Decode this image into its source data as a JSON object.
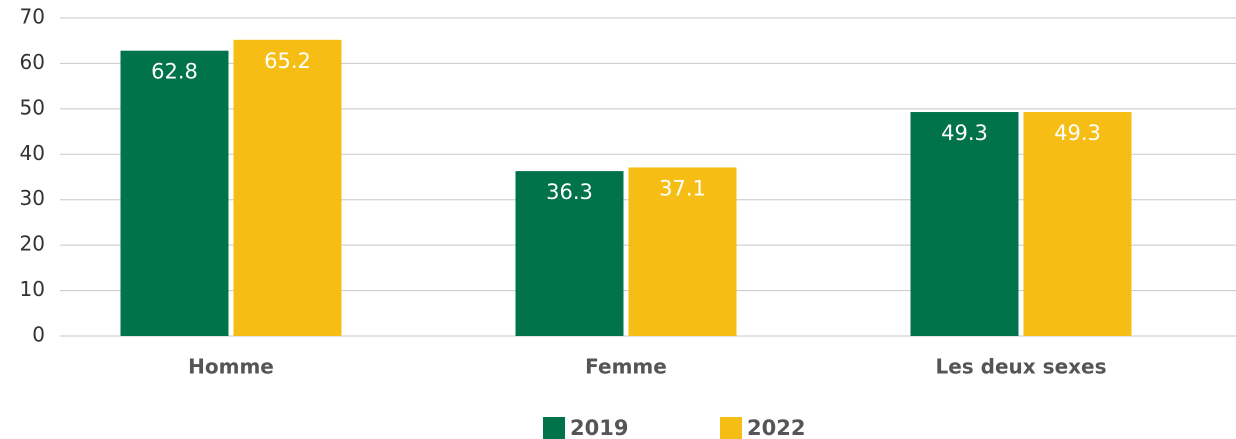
{
  "chart_data": {
    "type": "bar",
    "categories": [
      "Homme",
      "Femme",
      "Les deux sexes"
    ],
    "series": [
      {
        "name": "2019",
        "color": "#00734a",
        "values": [
          62.8,
          36.3,
          49.3
        ]
      },
      {
        "name": "2022",
        "color": "#f6be15",
        "values": [
          65.2,
          37.1,
          49.3
        ]
      }
    ],
    "ylim": [
      0,
      70
    ],
    "yticks": [
      0,
      10,
      20,
      30,
      40,
      50,
      60,
      70
    ],
    "grid": true,
    "legend": "bottom"
  }
}
